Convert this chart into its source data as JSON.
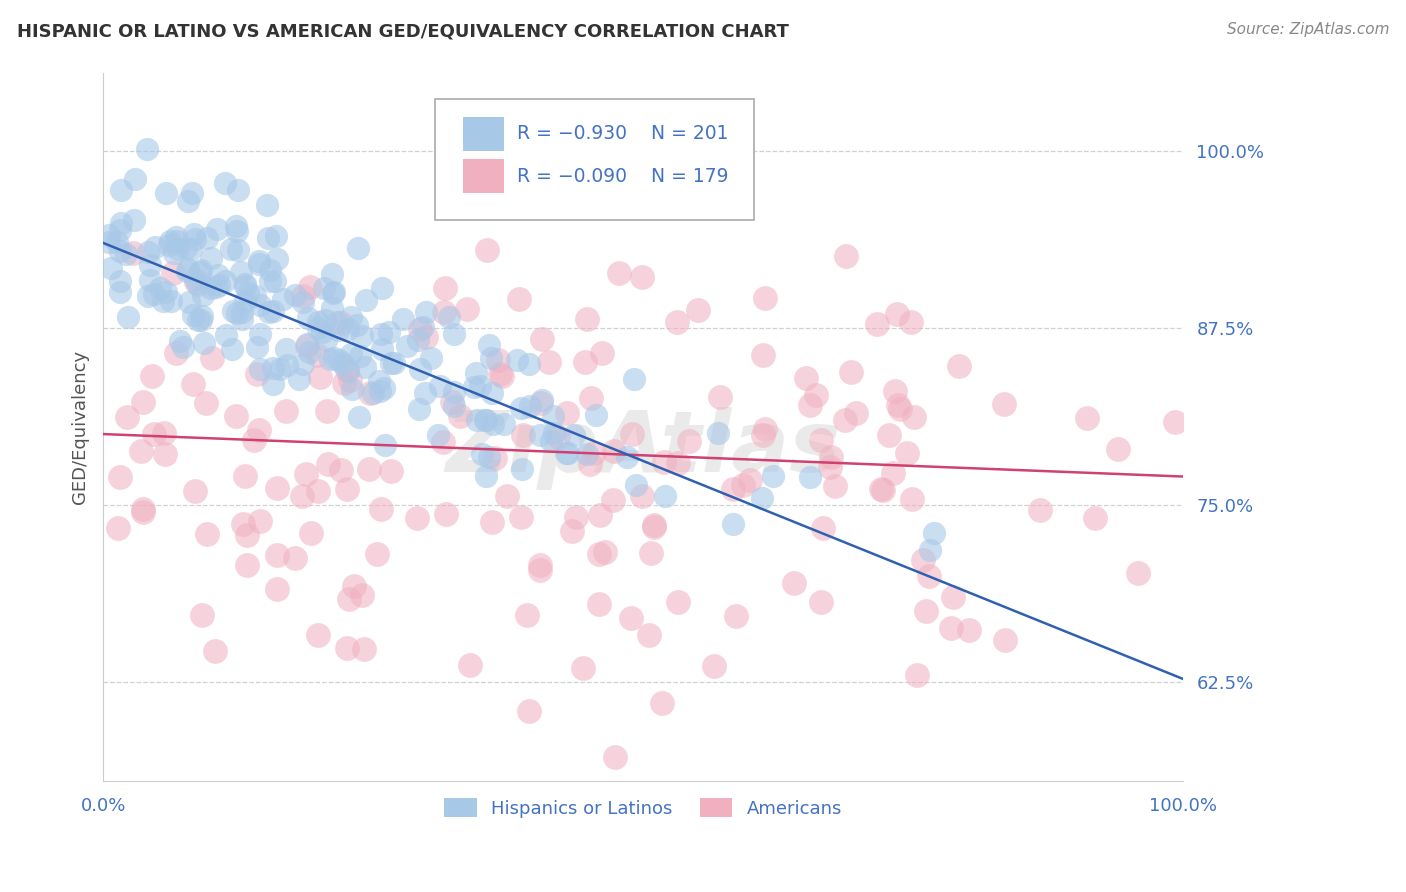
{
  "title": "HISPANIC OR LATINO VS AMERICAN GED/EQUIVALENCY CORRELATION CHART",
  "source": "Source: ZipAtlas.com",
  "ylabel": "GED/Equivalency",
  "legend_blue_r": "R = −0.930",
  "legend_blue_n": "N = 201",
  "legend_pink_r": "R = −0.090",
  "legend_pink_n": "N = 179",
  "legend_label_blue": "Hispanics or Latinos",
  "legend_label_pink": "Americans",
  "ytick_labels": [
    "62.5%",
    "75.0%",
    "87.5%",
    "100.0%"
  ],
  "ytick_values": [
    0.625,
    0.75,
    0.875,
    1.0
  ],
  "blue_color": "#A8C8E8",
  "pink_color": "#F0B0C0",
  "blue_line_color": "#3060B0",
  "pink_line_color": "#D04070",
  "title_color": "#333333",
  "axis_label_color": "#4472C4",
  "background_color": "#FFFFFF",
  "grid_color": "#CCCCCC",
  "watermark_text": "ZipAtlas",
  "blue_n": 201,
  "pink_n": 179,
  "blue_r": -0.93,
  "pink_r": -0.09,
  "xmin": 0.0,
  "xmax": 1.0,
  "ymin": 0.555,
  "ymax": 1.055,
  "blue_trendline_y_start": 0.935,
  "blue_trendline_y_end": 0.627,
  "pink_trendline_y_start": 0.8,
  "pink_trendline_y_end": 0.77
}
